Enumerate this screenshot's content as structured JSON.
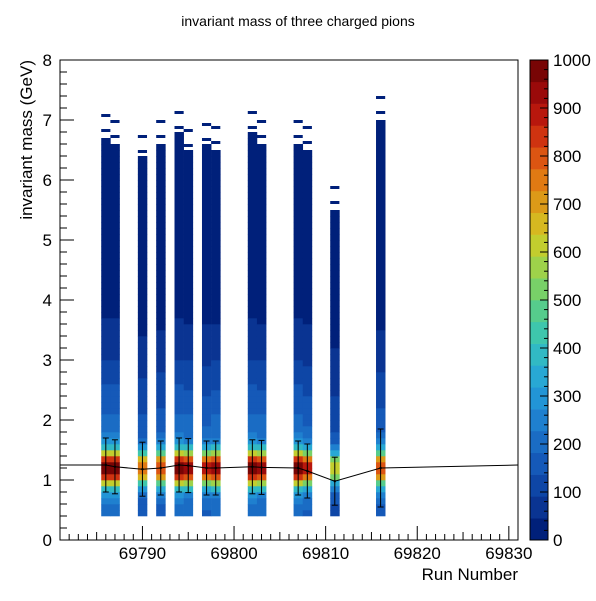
{
  "chart_data": {
    "type": "heatmap",
    "title": "invariant mass of three charged pions",
    "xlabel": "Run Number",
    "ylabel": "invariant mass (GeV)",
    "xlim": [
      69781,
      69831
    ],
    "ylim": [
      0,
      8
    ],
    "x_ticks": [
      69790,
      69800,
      69810,
      69820,
      69830
    ],
    "y_ticks": [
      0,
      1,
      2,
      3,
      4,
      5,
      6,
      7,
      8
    ],
    "colorbar": {
      "min": 0,
      "max": 1000,
      "ticks": [
        0,
        100,
        200,
        300,
        400,
        500,
        600,
        700,
        800,
        900,
        1000
      ],
      "palette": [
        "#00207a",
        "#0a3492",
        "#0e46a6",
        "#1559b8",
        "#1a6cc4",
        "#1f80cf",
        "#2295d6",
        "#28a8d4",
        "#31b9c4",
        "#3ec6ac",
        "#56cc8c",
        "#78d168",
        "#9ed24a",
        "#c2cd2e",
        "#d6b820",
        "#dc9a18",
        "#e07a13",
        "#dc5512",
        "#cf3310",
        "#b8170d",
        "#9a0a0a",
        "#780505"
      ],
      "grid": false
    },
    "runs": [
      {
        "run": 69786,
        "counts": 1.0
      },
      {
        "run": 69787,
        "counts": 1.0
      },
      {
        "run": 69790,
        "counts": 0.75
      },
      {
        "run": 69792,
        "counts": 0.8
      },
      {
        "run": 69794,
        "counts": 1.0
      },
      {
        "run": 69795,
        "counts": 0.95
      },
      {
        "run": 69797,
        "counts": 0.9
      },
      {
        "run": 69798,
        "counts": 0.95
      },
      {
        "run": 69802,
        "counts": 1.0
      },
      {
        "run": 69803,
        "counts": 0.95
      },
      {
        "run": 69807,
        "counts": 1.0
      },
      {
        "run": 69808,
        "counts": 0.9
      },
      {
        "run": 69811,
        "counts": 0.6
      },
      {
        "run": 69816,
        "counts": 0.8
      }
    ],
    "mean_profile": {
      "x": [
        69781,
        69786,
        69787,
        69790,
        69792,
        69794,
        69795,
        69797,
        69798,
        69802,
        69803,
        69807,
        69808,
        69811,
        69816,
        69831
      ],
      "y": [
        1.25,
        1.25,
        1.22,
        1.18,
        1.2,
        1.25,
        1.24,
        1.2,
        1.2,
        1.22,
        1.21,
        1.2,
        1.15,
        0.98,
        1.2,
        1.25
      ],
      "err": [
        0,
        0.45,
        0.45,
        0.45,
        0.45,
        0.45,
        0.45,
        0.45,
        0.45,
        0.45,
        0.45,
        0.45,
        0.45,
        0.4,
        0.65,
        0
      ]
    }
  }
}
